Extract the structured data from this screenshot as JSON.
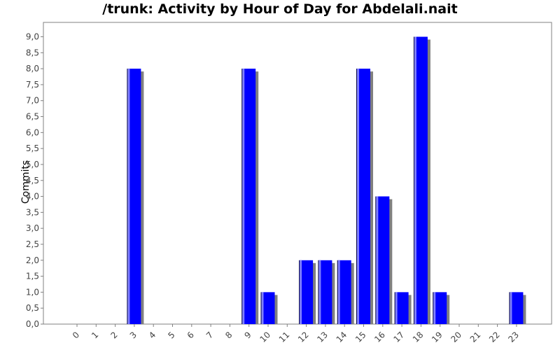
{
  "title": "/trunk: Activity by Hour of Day for Abdelali.nait",
  "chart_data": {
    "type": "bar",
    "title": "/trunk: Activity by Hour of Day for Abdelali.nait",
    "xlabel": "",
    "ylabel": "Commits",
    "categories": [
      "0",
      "1",
      "2",
      "3",
      "4",
      "5",
      "6",
      "7",
      "8",
      "9",
      "10",
      "11",
      "12",
      "13",
      "14",
      "15",
      "16",
      "17",
      "18",
      "19",
      "20",
      "21",
      "22",
      "23"
    ],
    "series": [
      {
        "values": [
          0,
          0,
          0,
          8,
          0,
          0,
          0,
          0,
          0,
          8,
          1,
          0,
          2,
          2,
          2,
          8,
          4,
          1,
          9,
          1,
          0,
          0,
          0,
          1
        ]
      }
    ],
    "y_ticks": [
      "0,0",
      "0,5",
      "1,0",
      "1,5",
      "2,0",
      "2,5",
      "3,0",
      "3,5",
      "4,0",
      "4,5",
      "5,0",
      "5,5",
      "6,0",
      "6,5",
      "7,0",
      "7,5",
      "8,0",
      "8,5",
      "9,0"
    ],
    "ylim": [
      0,
      9.45
    ],
    "grid": false,
    "colors": {
      "bar": "#0000ff",
      "bar_highlight": "#8080ff",
      "shadow": "#808080",
      "axis": "#808080"
    }
  }
}
